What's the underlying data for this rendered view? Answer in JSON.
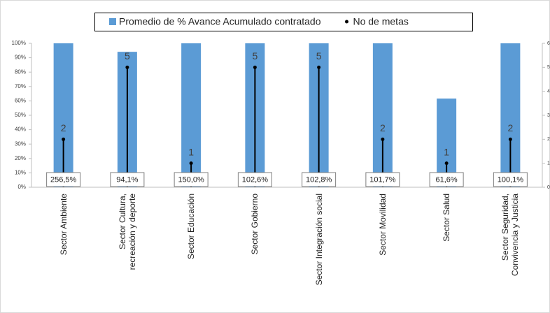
{
  "chart_data": {
    "type": "combo",
    "categories": [
      "Sector Ambiente",
      "Sector Cultura,\nrecreación y deporte",
      "Sector Educación",
      "Sector Gobierno",
      "Sector Integración social",
      "Sector Movilidad",
      "Sector Salud",
      "Sector Seguridad,\nConvivencia y Justicia"
    ],
    "series": [
      {
        "name": "Promedio de % Avance Acumulado contratado",
        "type": "bar",
        "color": "#5b9bd5",
        "values": [
          256.5,
          94.1,
          150.0,
          102.6,
          102.8,
          101.7,
          61.6,
          100.1
        ],
        "value_labels": [
          "256,5%",
          "94,1%",
          "150,0%",
          "102,6%",
          "102,8%",
          "101,7%",
          "61,6%",
          "100,1%"
        ]
      },
      {
        "name": "No de metas",
        "type": "dropline",
        "axis": "y2",
        "color": "#000000",
        "values": [
          2,
          5,
          1,
          5,
          5,
          2,
          1,
          2
        ]
      }
    ],
    "ylim": [
      0,
      100
    ],
    "yticks": [
      {
        "value": 0,
        "label": "0%"
      },
      {
        "value": 10,
        "label": "10%"
      },
      {
        "value": 20,
        "label": "20%"
      },
      {
        "value": 30,
        "label": "30%"
      },
      {
        "value": 40,
        "label": "40%"
      },
      {
        "value": 50,
        "label": "50%"
      },
      {
        "value": 60,
        "label": "60%"
      },
      {
        "value": 70,
        "label": "70%"
      },
      {
        "value": 80,
        "label": "80%"
      },
      {
        "value": 90,
        "label": "90%"
      },
      {
        "value": 100,
        "label": "100%"
      }
    ],
    "y2lim": [
      0,
      6
    ],
    "y2ticks": [
      0,
      1,
      2,
      3,
      4,
      5,
      6
    ],
    "legend": "top"
  }
}
